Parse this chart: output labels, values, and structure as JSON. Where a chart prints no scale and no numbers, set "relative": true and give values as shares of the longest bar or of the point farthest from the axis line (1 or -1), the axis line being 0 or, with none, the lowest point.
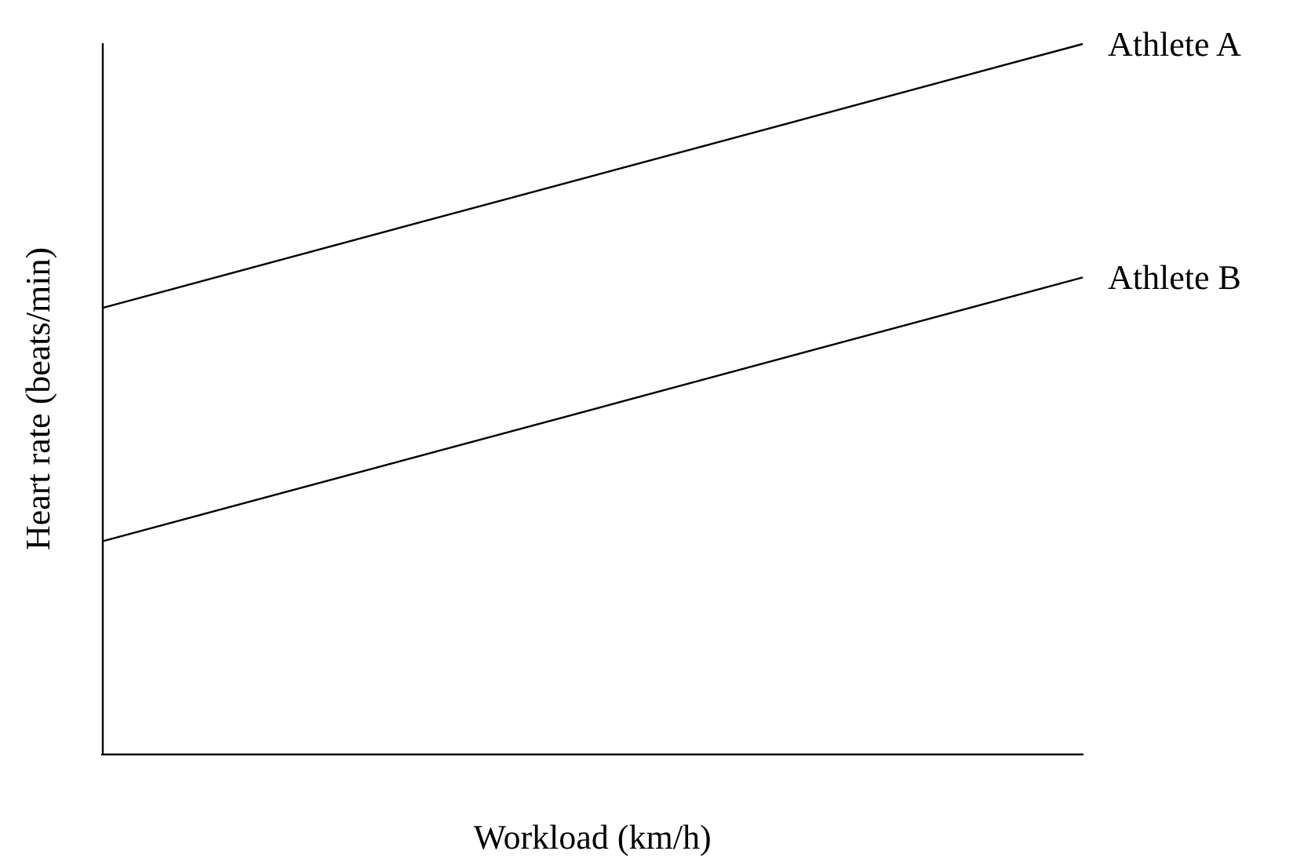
{
  "chart_data": {
    "type": "line",
    "relative": true,
    "xlabel": "Workload (km/h)",
    "ylabel": "Heart rate (beats/min)",
    "categories": [
      null,
      null
    ],
    "series": [
      {
        "name": "Athlete A",
        "color": "#000000",
        "values": [
          0.628,
          1
        ]
      },
      {
        "name": "Athlete B",
        "color": "#000000",
        "values": [
          0.299,
          0.671
        ]
      }
    ],
    "legend": false,
    "grid": false,
    "marker": "none",
    "line_style": "solid"
  }
}
